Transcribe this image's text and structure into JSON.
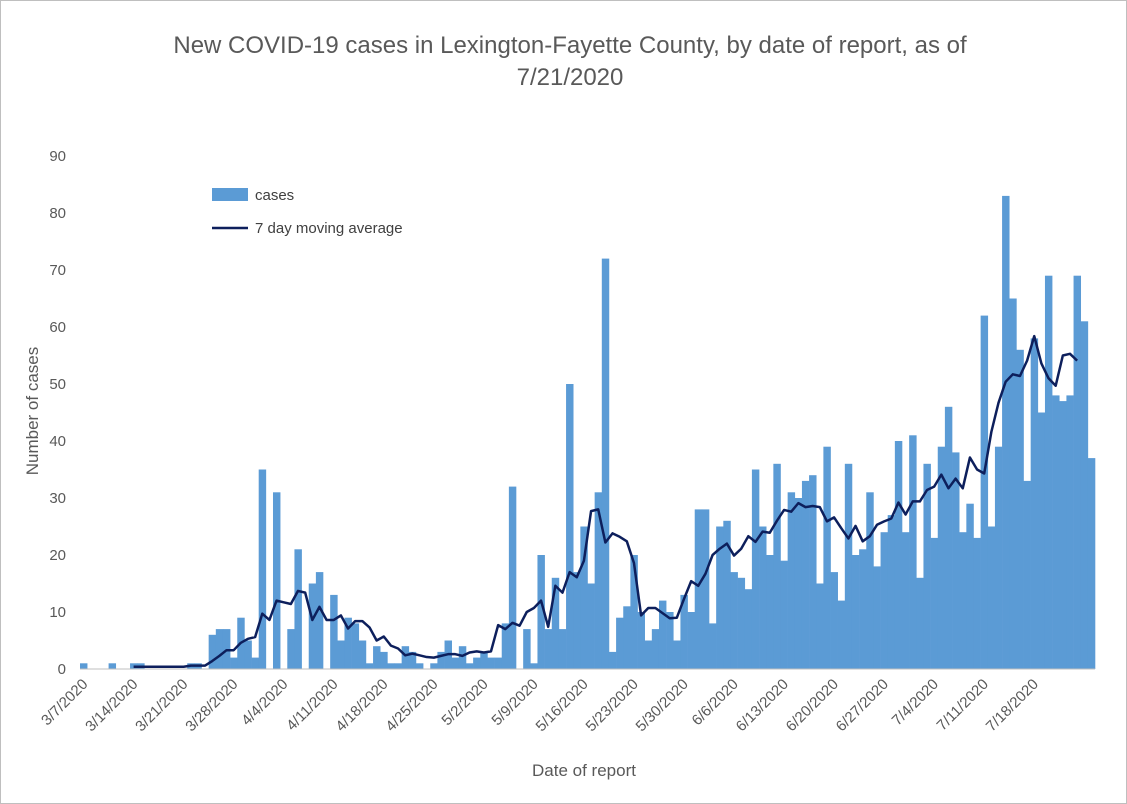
{
  "chart_data": {
    "type": "bar",
    "title": "New COVID-19 cases in Lexington-Fayette County, by date of report, as of 7/21/2020",
    "xlabel": "Date of report",
    "ylabel": "Number of cases",
    "ylim": [
      0,
      90
    ],
    "yticks": [
      0,
      10,
      20,
      30,
      40,
      50,
      60,
      70,
      80,
      90
    ],
    "x_tick_labels": [
      "3/7/2020",
      "3/14/2020",
      "3/21/2020",
      "3/28/2020",
      "4/4/2020",
      "4/11/2020",
      "4/18/2020",
      "4/25/2020",
      "5/2/2020",
      "5/9/2020",
      "5/16/2020",
      "5/23/2020",
      "5/30/2020",
      "6/6/2020",
      "6/13/2020",
      "6/20/2020",
      "6/27/2020",
      "7/4/2020",
      "7/11/2020",
      "7/18/2020"
    ],
    "legend_position": "top-left",
    "grid": false,
    "bar_color": "#5b9bd5",
    "line_color": "#0d1f5c",
    "series": [
      {
        "name": "cases",
        "type": "bar",
        "values": [
          1,
          0,
          0,
          0,
          1,
          0,
          0,
          1,
          1,
          0,
          0,
          0,
          0,
          0,
          0,
          1,
          1,
          0,
          6,
          7,
          7,
          2,
          9,
          5,
          2,
          35,
          0,
          31,
          0,
          7,
          21,
          0,
          15,
          17,
          0,
          13,
          5,
          9,
          8,
          5,
          1,
          4,
          3,
          1,
          1,
          4,
          3,
          1,
          0,
          1,
          3,
          5,
          2,
          4,
          1,
          2,
          3,
          2,
          2,
          8,
          32,
          0,
          7,
          1,
          20,
          7,
          16,
          7,
          50,
          17,
          25,
          15,
          31,
          72,
          3,
          9,
          11,
          20,
          10,
          5,
          7,
          12,
          10,
          5,
          13,
          10,
          28,
          28,
          8,
          25,
          26,
          17,
          16,
          14,
          35,
          25,
          20,
          36,
          19,
          31,
          30,
          33,
          34,
          15,
          39,
          17,
          12,
          36,
          20,
          21,
          31,
          18,
          24,
          27,
          40,
          24,
          41,
          16,
          36,
          23,
          39,
          46,
          38,
          24,
          29,
          23,
          62,
          25,
          39,
          83,
          65,
          56,
          33,
          58,
          45,
          69,
          48,
          47,
          48,
          69,
          61,
          37
        ]
      },
      {
        "name": "7 day moving average",
        "type": "line",
        "values": [
          null,
          null,
          null,
          null,
          null,
          null,
          null,
          0.4,
          0.4,
          0.4,
          0.4,
          0.4,
          0.4,
          0.4,
          0.4,
          0.6,
          0.6,
          0.6,
          1.4,
          2.3,
          3.3,
          3.3,
          4.6,
          5.3,
          5.6,
          9.7,
          8.6,
          12.0,
          11.7,
          11.4,
          13.7,
          13.4,
          8.6,
          10.9,
          8.6,
          8.6,
          9.4,
          7.1,
          8.4,
          8.4,
          7.3,
          5.0,
          5.7,
          4.1,
          3.6,
          2.4,
          2.7,
          2.4,
          2.1,
          2.0,
          2.3,
          2.6,
          2.6,
          2.3,
          2.9,
          3.1,
          2.9,
          3.1,
          7.7,
          7.0,
          8.1,
          7.6,
          10.0,
          10.7,
          12.0,
          7.4,
          14.6,
          13.4,
          17.0,
          16.1,
          19.0,
          27.7,
          28.0,
          22.2,
          23.8,
          23.2,
          22.4,
          18.6,
          9.4,
          10.7,
          10.7,
          9.8,
          8.9,
          9.0,
          12.3,
          15.4,
          14.6,
          16.7,
          20.0,
          21.1,
          22.0,
          19.9,
          21.1,
          23.3,
          22.3,
          24.1,
          23.9,
          26.0,
          27.9,
          27.6,
          29.1,
          28.4,
          28.6,
          28.4,
          25.9,
          26.6,
          24.7,
          22.9,
          25.1,
          22.4,
          23.3,
          25.3,
          25.9,
          26.4,
          29.2,
          27.1,
          29.4,
          29.4,
          31.4,
          32.0,
          34.1,
          31.7,
          33.4,
          31.7,
          37.1,
          35.0,
          34.3,
          41.6,
          46.7,
          50.4,
          51.7,
          51.4,
          54.1,
          58.4,
          53.6,
          51.0,
          49.7,
          55.0,
          55.3,
          54.1
        ]
      }
    ]
  }
}
